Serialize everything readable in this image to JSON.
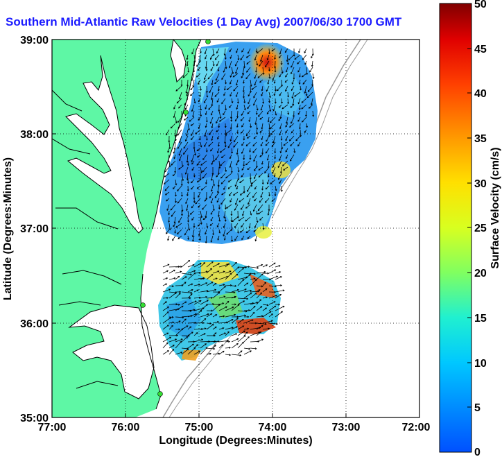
{
  "title": "Southern Mid-Atlantic Raw Velocities (1 Day Avg) 2007/06/30 1700 GMT",
  "x_axis": {
    "label": "Longitude (Degrees:Minutes)",
    "ticks": [
      "77:00",
      "76:00",
      "75:00",
      "74:00",
      "73:00",
      "72:00"
    ]
  },
  "y_axis": {
    "label": "Latitude (Degrees:Minutes)",
    "ticks": [
      "39:00",
      "38:00",
      "37:00",
      "36:00",
      "35:00"
    ]
  },
  "colorbar": {
    "label": "Surface Velocity (cm/s)",
    "ticks": [
      "50",
      "45",
      "40",
      "35",
      "30",
      "25",
      "20",
      "15",
      "10",
      "5",
      "0"
    ],
    "range": [
      0,
      50
    ]
  },
  "colors": {
    "land": "#5ef7a5",
    "water": "#ffffff",
    "title": "#1a1aff",
    "station": "#33dd33"
  }
}
